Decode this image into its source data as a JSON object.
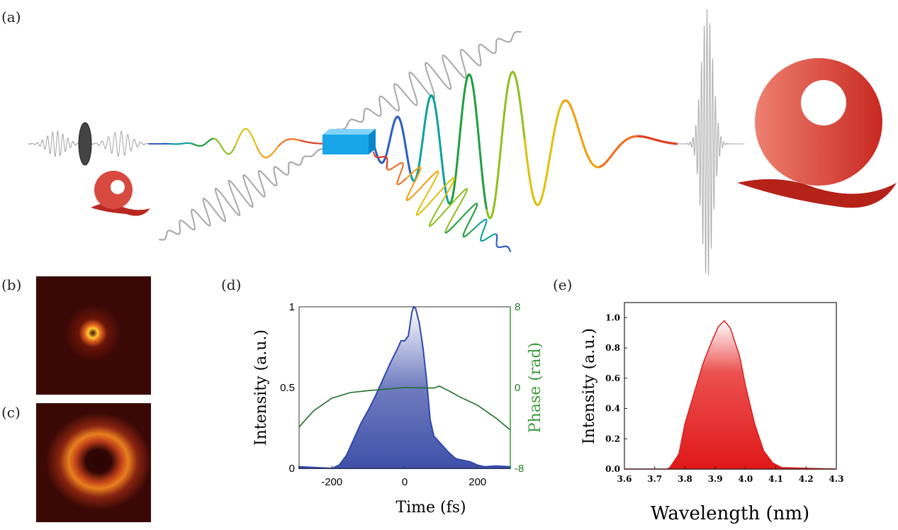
{
  "panels": {
    "a": "(a)",
    "b": "(b)",
    "c": "(c)",
    "d": "(d)",
    "e": "(e)"
  },
  "colors": {
    "intensity_fill": "#3f51a8",
    "phase_line": "#1f6e28",
    "phase_axis": "#3a9a3a",
    "spectrum_fill": "#e01818",
    "crystal": "#18a6e8",
    "vortex": "#d83a30",
    "pulse_gray": "#aaaaaa"
  },
  "chart_data": [
    {
      "panel": "d",
      "type": "area",
      "xlabel": "Time (fs)",
      "ylabel": "Intensity (a.u.)",
      "y2label": "Phase (rad)",
      "xlim": [
        -290,
        290
      ],
      "ylim": [
        0,
        1
      ],
      "y2lim": [
        -8,
        8
      ],
      "xticks": [
        "-200",
        "0",
        "200"
      ],
      "yticks": [
        "0",
        "0.5",
        "1"
      ],
      "y2ticks": [
        "-8",
        "0",
        "8"
      ],
      "grid": false,
      "series": [
        {
          "axis": "left",
          "kind": "area",
          "x": [
            -290,
            -200,
            -180,
            -160,
            -140,
            -120,
            -100,
            -80,
            -60,
            -40,
            -20,
            -10,
            0,
            10,
            20,
            25,
            30,
            40,
            50,
            60,
            70,
            80,
            100,
            120,
            140,
            160,
            180,
            200,
            220,
            250,
            290
          ],
          "y": [
            0.01,
            0,
            0.02,
            0.08,
            0.18,
            0.28,
            0.36,
            0.45,
            0.55,
            0.65,
            0.74,
            0.79,
            0.79,
            0.82,
            0.97,
            1.0,
            0.99,
            0.9,
            0.75,
            0.55,
            0.3,
            0.2,
            0.15,
            0.1,
            0.06,
            0.05,
            0.04,
            0.02,
            0.01,
            0.015,
            0.01
          ]
        },
        {
          "axis": "right",
          "kind": "line",
          "x": [
            -290,
            -250,
            -200,
            -150,
            -100,
            -50,
            0,
            50,
            80,
            95,
            120,
            150,
            200,
            250,
            290
          ],
          "y": [
            -3.9,
            -2.3,
            -1.05,
            -0.5,
            -0.3,
            -0.15,
            0,
            -0.02,
            -0.05,
            0.15,
            -0.3,
            -0.9,
            -1.75,
            -3.0,
            -4.2
          ]
        }
      ]
    },
    {
      "panel": "e",
      "type": "area",
      "xlabel": "Wavelength (nm)",
      "ylabel": "Intensity (a.u.)",
      "xlim": [
        3.6,
        4.3
      ],
      "ylim": [
        0,
        1.1
      ],
      "xticks": [
        "3.6",
        "3.7",
        "3.8",
        "3.9",
        "4.0",
        "4.1",
        "4.2",
        "4.3"
      ],
      "yticks": [
        "0.0",
        "0.2",
        "0.4",
        "0.6",
        "0.8",
        "1.0"
      ],
      "grid": false,
      "series": [
        {
          "kind": "area",
          "x": [
            3.6,
            3.74,
            3.75,
            3.78,
            3.8,
            3.83,
            3.86,
            3.89,
            3.91,
            3.93,
            3.95,
            3.98,
            4.0,
            4.03,
            4.06,
            4.09,
            4.12,
            4.3
          ],
          "y": [
            0,
            0,
            0.01,
            0.1,
            0.3,
            0.5,
            0.7,
            0.85,
            0.94,
            0.98,
            0.93,
            0.75,
            0.55,
            0.3,
            0.12,
            0.04,
            0.01,
            0
          ]
        }
      ]
    }
  ]
}
